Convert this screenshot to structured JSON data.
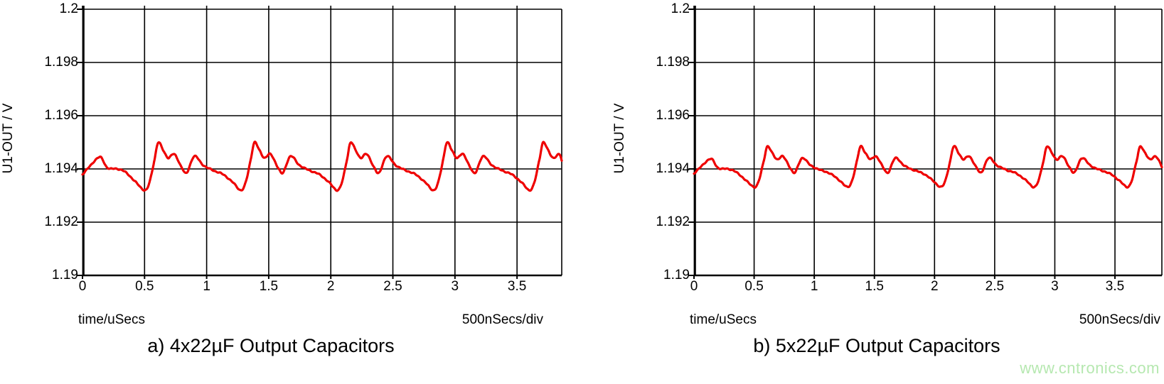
{
  "page": {
    "watermark": "www.cntronics.com",
    "watermark_color": "#b6e8b0",
    "background_color": "#ffffff",
    "grid_color": "#000000"
  },
  "chart_data": [
    {
      "type": "line",
      "caption": "a) 4x22µF Output Capacitors",
      "ylabel": "U1-OUT / V",
      "xlabel": "time/uSecs",
      "x_div_label": "500nSecs/div",
      "xlim": [
        0,
        3.86
      ],
      "ylim": [
        1.19,
        1.2
      ],
      "xticks": [
        0,
        0.5,
        1,
        1.5,
        2,
        2.5,
        3,
        3.5
      ],
      "xtick_labels": [
        "0",
        "0.5",
        "1",
        "1.5",
        "2",
        "2.5",
        "3",
        "3.5"
      ],
      "yticks": [
        1.19,
        1.192,
        1.194,
        1.196,
        1.198,
        1.2
      ],
      "ytick_labels": [
        "1.19",
        "1.192",
        "1.194",
        "1.196",
        "1.198",
        "1.2"
      ],
      "grid": true,
      "line_color": "#ee0000",
      "series": [
        {
          "name": "U1-OUT",
          "baseline_v": 1.194,
          "v_max": 1.195,
          "v_min": 1.1932,
          "ripple_pp_mv": 1.8,
          "period_us": 0.775,
          "peak_times_us": [
            0.61,
            1.385,
            2.16,
            2.935,
            3.71
          ],
          "points_t_mv": [
            [
              0.0,
              -0.2
            ],
            [
              0.06,
              0.1
            ],
            [
              0.14,
              0.45
            ],
            [
              0.2,
              0.05
            ],
            [
              0.28,
              0.0
            ],
            [
              0.34,
              -0.1
            ],
            [
              0.42,
              -0.45
            ],
            [
              0.5,
              -0.8
            ],
            [
              0.54,
              -0.5
            ],
            [
              0.58,
              0.35
            ],
            [
              0.61,
              1.0
            ],
            [
              0.65,
              0.7
            ],
            [
              0.69,
              0.42
            ],
            [
              0.74,
              0.55
            ],
            [
              0.8,
              0.05
            ],
            [
              0.84,
              -0.15
            ],
            [
              0.9,
              0.48
            ],
            [
              0.97,
              0.15
            ],
            [
              1.05,
              -0.05
            ],
            [
              1.13,
              -0.2
            ],
            [
              1.21,
              -0.5
            ],
            [
              1.275,
              -0.8
            ],
            [
              1.315,
              -0.5
            ],
            [
              1.355,
              0.35
            ],
            [
              1.385,
              1.0
            ],
            [
              1.425,
              0.7
            ],
            [
              1.465,
              0.42
            ],
            [
              1.515,
              0.55
            ],
            [
              1.575,
              0.05
            ],
            [
              1.615,
              -0.15
            ],
            [
              1.675,
              0.48
            ],
            [
              1.745,
              0.15
            ],
            [
              1.825,
              -0.05
            ],
            [
              1.905,
              -0.2
            ],
            [
              1.985,
              -0.5
            ],
            [
              2.05,
              -0.8
            ],
            [
              2.09,
              -0.5
            ],
            [
              2.13,
              0.35
            ],
            [
              2.16,
              1.0
            ],
            [
              2.2,
              0.7
            ],
            [
              2.24,
              0.42
            ],
            [
              2.29,
              0.55
            ],
            [
              2.35,
              0.05
            ],
            [
              2.39,
              -0.15
            ],
            [
              2.45,
              0.48
            ],
            [
              2.52,
              0.15
            ],
            [
              2.6,
              -0.05
            ],
            [
              2.68,
              -0.2
            ],
            [
              2.76,
              -0.5
            ],
            [
              2.825,
              -0.8
            ],
            [
              2.865,
              -0.5
            ],
            [
              2.905,
              0.35
            ],
            [
              2.935,
              1.0
            ],
            [
              2.975,
              0.7
            ],
            [
              3.015,
              0.42
            ],
            [
              3.065,
              0.55
            ],
            [
              3.125,
              0.05
            ],
            [
              3.165,
              -0.15
            ],
            [
              3.225,
              0.48
            ],
            [
              3.295,
              0.15
            ],
            [
              3.375,
              -0.05
            ],
            [
              3.455,
              -0.2
            ],
            [
              3.535,
              -0.5
            ],
            [
              3.6,
              -0.8
            ],
            [
              3.64,
              -0.5
            ],
            [
              3.68,
              0.35
            ],
            [
              3.71,
              1.0
            ],
            [
              3.75,
              0.7
            ],
            [
              3.79,
              0.42
            ],
            [
              3.84,
              0.55
            ],
            [
              3.86,
              0.3
            ]
          ]
        }
      ]
    },
    {
      "type": "line",
      "caption": "b) 5x22µF Output Capacitors",
      "ylabel": "U1-OUT / V",
      "xlabel": "time/uSecs",
      "x_div_label": "500nSecs/div",
      "xlim": [
        0,
        3.89
      ],
      "ylim": [
        1.19,
        1.2
      ],
      "xticks": [
        0,
        0.5,
        1,
        1.5,
        2,
        2.5,
        3,
        3.5
      ],
      "xtick_labels": [
        "0",
        "0.5",
        "1",
        "1.5",
        "2",
        "2.5",
        "3",
        "3.5"
      ],
      "yticks": [
        1.19,
        1.192,
        1.194,
        1.196,
        1.198,
        1.2
      ],
      "ytick_labels": [
        "1.19",
        "1.192",
        "1.194",
        "1.196",
        "1.198",
        "1.2"
      ],
      "grid": true,
      "line_color": "#ee0000",
      "series": [
        {
          "name": "U1-OUT",
          "baseline_v": 1.194,
          "v_max": 1.19485,
          "v_min": 1.19332,
          "ripple_pp_mv": 1.5,
          "period_us": 0.775,
          "peak_times_us": [
            0.61,
            1.385,
            2.16,
            2.935,
            3.71
          ],
          "points_t_mv": [
            [
              0.0,
              -0.17
            ],
            [
              0.06,
              0.09
            ],
            [
              0.14,
              0.38
            ],
            [
              0.2,
              0.04
            ],
            [
              0.28,
              0.0
            ],
            [
              0.34,
              -0.09
            ],
            [
              0.42,
              -0.38
            ],
            [
              0.5,
              -0.68
            ],
            [
              0.54,
              -0.43
            ],
            [
              0.58,
              0.3
            ],
            [
              0.61,
              0.85
            ],
            [
              0.65,
              0.6
            ],
            [
              0.69,
              0.36
            ],
            [
              0.74,
              0.47
            ],
            [
              0.8,
              0.04
            ],
            [
              0.84,
              -0.13
            ],
            [
              0.9,
              0.41
            ],
            [
              0.97,
              0.13
            ],
            [
              1.05,
              -0.04
            ],
            [
              1.13,
              -0.17
            ],
            [
              1.21,
              -0.43
            ],
            [
              1.275,
              -0.68
            ],
            [
              1.315,
              -0.43
            ],
            [
              1.355,
              0.3
            ],
            [
              1.385,
              0.85
            ],
            [
              1.425,
              0.6
            ],
            [
              1.465,
              0.36
            ],
            [
              1.515,
              0.47
            ],
            [
              1.575,
              0.04
            ],
            [
              1.615,
              -0.13
            ],
            [
              1.675,
              0.41
            ],
            [
              1.745,
              0.13
            ],
            [
              1.825,
              -0.04
            ],
            [
              1.905,
              -0.17
            ],
            [
              1.985,
              -0.43
            ],
            [
              2.05,
              -0.68
            ],
            [
              2.09,
              -0.43
            ],
            [
              2.13,
              0.3
            ],
            [
              2.16,
              0.85
            ],
            [
              2.2,
              0.6
            ],
            [
              2.24,
              0.36
            ],
            [
              2.29,
              0.47
            ],
            [
              2.35,
              0.04
            ],
            [
              2.39,
              -0.13
            ],
            [
              2.45,
              0.41
            ],
            [
              2.52,
              0.13
            ],
            [
              2.6,
              -0.04
            ],
            [
              2.68,
              -0.17
            ],
            [
              2.76,
              -0.43
            ],
            [
              2.825,
              -0.68
            ],
            [
              2.865,
              -0.43
            ],
            [
              2.905,
              0.3
            ],
            [
              2.935,
              0.85
            ],
            [
              2.975,
              0.6
            ],
            [
              3.015,
              0.36
            ],
            [
              3.065,
              0.47
            ],
            [
              3.125,
              0.04
            ],
            [
              3.165,
              -0.13
            ],
            [
              3.225,
              0.41
            ],
            [
              3.295,
              0.13
            ],
            [
              3.375,
              -0.04
            ],
            [
              3.455,
              -0.17
            ],
            [
              3.535,
              -0.43
            ],
            [
              3.6,
              -0.68
            ],
            [
              3.64,
              -0.43
            ],
            [
              3.68,
              0.3
            ],
            [
              3.71,
              0.85
            ],
            [
              3.75,
              0.6
            ],
            [
              3.79,
              0.36
            ],
            [
              3.84,
              0.47
            ],
            [
              3.89,
              0.08
            ]
          ]
        }
      ]
    }
  ]
}
